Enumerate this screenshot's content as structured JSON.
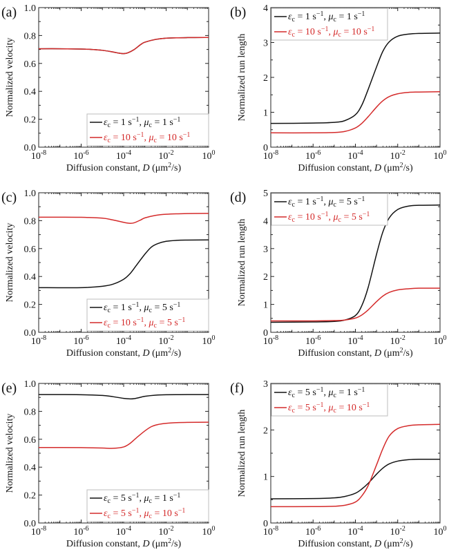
{
  "figure": {
    "colors": {
      "black": "#111111",
      "red": "#d42a2a",
      "frame": "#222222",
      "legend_border": "#bdbdbd"
    }
  },
  "chart_data": [
    {
      "id": "a",
      "panel_label": "(a)",
      "type": "line",
      "xlabel": "Diffusion constant, D (μm²/s)",
      "xlabel_parts": {
        "pre": "Diffusion constant, ",
        "var": "D",
        "unit_pre": " (μm",
        "sup": "2",
        "unit_post": "/s)"
      },
      "ylabel": "Normalized velocity",
      "xscale": "log",
      "xlim_log10": [
        -8,
        0
      ],
      "ylim": [
        0,
        1.0
      ],
      "xticks_exp": [
        "-8",
        "-6",
        "-4",
        "-2",
        "0"
      ],
      "yticks": [
        "0.0",
        "0.2",
        "0.4",
        "0.6",
        "0.8",
        "1.0"
      ],
      "ytick_values": [
        0,
        0.2,
        0.4,
        0.6,
        0.8,
        1.0
      ],
      "legend_position": "bottom-right",
      "series": [
        {
          "name": "ε_c = 1 s^-1, μ_c = 1 s^-1",
          "eps": "1",
          "mu": "1",
          "color": "black",
          "x_log10": [
            -8,
            -7,
            -6,
            -5.5,
            -5,
            -4.5,
            -4.2,
            -4,
            -3.8,
            -3.5,
            -3.2,
            -3,
            -2.5,
            -2,
            -1,
            0
          ],
          "y": [
            0.705,
            0.705,
            0.703,
            0.7,
            0.694,
            0.682,
            0.673,
            0.67,
            0.676,
            0.7,
            0.735,
            0.752,
            0.772,
            0.781,
            0.785,
            0.786
          ]
        },
        {
          "name": "ε_c = 10 s^-1, μ_c = 10 s^-1",
          "eps": "10",
          "mu": "10",
          "color": "red",
          "x_log10": [
            -8,
            -7,
            -6,
            -5.5,
            -5,
            -4.5,
            -4.2,
            -4,
            -3.8,
            -3.5,
            -3.2,
            -3,
            -2.5,
            -2,
            -1,
            0
          ],
          "y": [
            0.705,
            0.705,
            0.703,
            0.7,
            0.694,
            0.682,
            0.673,
            0.67,
            0.676,
            0.7,
            0.735,
            0.752,
            0.772,
            0.781,
            0.785,
            0.786
          ]
        }
      ]
    },
    {
      "id": "b",
      "panel_label": "(b)",
      "type": "line",
      "xlabel": "Diffusion constant, D (μm²/s)",
      "xlabel_parts": {
        "pre": "Diffusion constant, ",
        "var": "D",
        "unit_pre": " (μm",
        "sup": "2",
        "unit_post": "/s)"
      },
      "ylabel": "Normalized run length",
      "xscale": "log",
      "xlim_log10": [
        -8,
        0
      ],
      "ylim": [
        0,
        4
      ],
      "xticks_exp": [
        "-8",
        "-6",
        "-4",
        "-2",
        "0"
      ],
      "yticks": [
        "0",
        "1",
        "2",
        "3",
        "4"
      ],
      "ytick_values": [
        0,
        1,
        2,
        3,
        4
      ],
      "legend_position": "top-left",
      "series": [
        {
          "name": "ε_c = 1 s^-1, μ_c = 1 s^-1",
          "eps": "1",
          "mu": "1",
          "color": "black",
          "x_log10": [
            -8,
            -6,
            -5,
            -4.5,
            -4,
            -3.7,
            -3.4,
            -3,
            -2.7,
            -2.4,
            -2,
            -1.5,
            -1,
            0
          ],
          "y": [
            0.68,
            0.69,
            0.71,
            0.76,
            0.93,
            1.2,
            1.65,
            2.3,
            2.75,
            3.02,
            3.18,
            3.24,
            3.26,
            3.27
          ]
        },
        {
          "name": "ε_c = 10 s^-1, μ_c = 10 s^-1",
          "eps": "10",
          "mu": "10",
          "color": "red",
          "x_log10": [
            -8,
            -6,
            -5,
            -4.5,
            -4,
            -3.7,
            -3.4,
            -3,
            -2.7,
            -2.4,
            -2,
            -1.5,
            -1,
            0
          ],
          "y": [
            0.41,
            0.41,
            0.42,
            0.45,
            0.55,
            0.68,
            0.87,
            1.15,
            1.33,
            1.45,
            1.53,
            1.57,
            1.58,
            1.59
          ]
        }
      ]
    },
    {
      "id": "c",
      "panel_label": "(c)",
      "type": "line",
      "xlabel": "Diffusion constant, D (μm²/s)",
      "xlabel_parts": {
        "pre": "Diffusion constant, ",
        "var": "D",
        "unit_pre": " (μm",
        "sup": "2",
        "unit_post": "/s)"
      },
      "ylabel": "Normalized velocity",
      "xscale": "log",
      "xlim_log10": [
        -8,
        0
      ],
      "ylim": [
        0,
        1.0
      ],
      "xticks_exp": [
        "-8",
        "-6",
        "-4",
        "-2",
        "0"
      ],
      "yticks": [
        "0.0",
        "0.2",
        "0.4",
        "0.6",
        "0.8",
        "1.0"
      ],
      "ytick_values": [
        0,
        0.2,
        0.4,
        0.6,
        0.8,
        1.0
      ],
      "legend_position": "bottom-right",
      "series": [
        {
          "name": "ε_c = 1 s^-1, μ_c = 5 s^-1",
          "eps": "1",
          "mu": "5",
          "color": "black",
          "x_log10": [
            -8,
            -6,
            -5,
            -4.5,
            -4,
            -3.7,
            -3.4,
            -3,
            -2.7,
            -2.4,
            -2,
            -1.5,
            -1,
            0
          ],
          "y": [
            0.32,
            0.32,
            0.33,
            0.345,
            0.38,
            0.42,
            0.48,
            0.56,
            0.61,
            0.635,
            0.652,
            0.659,
            0.661,
            0.662
          ]
        },
        {
          "name": "ε_c = 10 s^-1, μ_c = 5 s^-1",
          "eps": "10",
          "mu": "5",
          "color": "red",
          "x_log10": [
            -8,
            -7,
            -6,
            -5,
            -4.5,
            -4,
            -3.7,
            -3.5,
            -3.2,
            -3,
            -2.5,
            -2,
            -1,
            0
          ],
          "y": [
            0.825,
            0.825,
            0.824,
            0.818,
            0.805,
            0.788,
            0.781,
            0.785,
            0.805,
            0.82,
            0.838,
            0.846,
            0.851,
            0.852
          ]
        }
      ]
    },
    {
      "id": "d",
      "panel_label": "(d)",
      "type": "line",
      "xlabel": "Diffusion constant, D (μm²/s)",
      "xlabel_parts": {
        "pre": "Diffusion constant, ",
        "var": "D",
        "unit_pre": " (μm",
        "sup": "2",
        "unit_post": "/s)"
      },
      "ylabel": "Normalized run length",
      "xscale": "log",
      "xlim_log10": [
        -8,
        0
      ],
      "ylim": [
        0,
        5
      ],
      "xticks_exp": [
        "-8",
        "-6",
        "-4",
        "-2",
        "0"
      ],
      "yticks": [
        "0",
        "1",
        "2",
        "3",
        "4",
        "5"
      ],
      "ytick_values": [
        0,
        1,
        2,
        3,
        4,
        5
      ],
      "legend_position": "top-left",
      "series": [
        {
          "name": "ε_c = 1 s^-1, μ_c = 5 s^-1",
          "eps": "1",
          "mu": "5",
          "color": "black",
          "x_log10": [
            -8,
            -6,
            -5,
            -4.5,
            -4,
            -3.7,
            -3.4,
            -3,
            -2.7,
            -2.4,
            -2,
            -1.5,
            -1,
            0
          ],
          "y": [
            0.36,
            0.37,
            0.39,
            0.44,
            0.6,
            0.95,
            1.6,
            2.8,
            3.6,
            4.1,
            4.4,
            4.52,
            4.55,
            4.56
          ]
        },
        {
          "name": "ε_c = 10 s^-1, μ_c = 5 s^-1",
          "eps": "10",
          "mu": "5",
          "color": "red",
          "x_log10": [
            -8,
            -6,
            -5,
            -4.5,
            -4,
            -3.7,
            -3.4,
            -3,
            -2.7,
            -2.4,
            -2,
            -1.5,
            -1,
            0
          ],
          "y": [
            0.41,
            0.41,
            0.42,
            0.44,
            0.51,
            0.62,
            0.8,
            1.1,
            1.3,
            1.43,
            1.52,
            1.56,
            1.58,
            1.58
          ]
        }
      ]
    },
    {
      "id": "e",
      "panel_label": "(e)",
      "type": "line",
      "xlabel": "Diffusion constant, D (μm²/s)",
      "xlabel_parts": {
        "pre": "Diffusion constant, ",
        "var": "D",
        "unit_pre": " (μm",
        "sup": "2",
        "unit_post": "/s)"
      },
      "ylabel": "Normalized velocity",
      "xscale": "log",
      "xlim_log10": [
        -8,
        0
      ],
      "ylim": [
        0,
        1.0
      ],
      "xticks_exp": [
        "-8",
        "-6",
        "-4",
        "-2",
        "0"
      ],
      "yticks": [
        "0.0",
        "0.2",
        "0.4",
        "0.6",
        "0.8",
        "1.0"
      ],
      "ytick_values": [
        0,
        0.2,
        0.4,
        0.6,
        0.8,
        1.0
      ],
      "legend_position": "bottom-right",
      "series": [
        {
          "name": "ε_c = 5 s^-1, μ_c = 1 s^-1",
          "eps": "5",
          "mu": "1",
          "color": "black",
          "x_log10": [
            -8,
            -7,
            -6,
            -5,
            -4.5,
            -4,
            -3.7,
            -3.5,
            -3.2,
            -3,
            -2.5,
            -2,
            -1,
            0
          ],
          "y": [
            0.92,
            0.92,
            0.919,
            0.914,
            0.905,
            0.893,
            0.889,
            0.891,
            0.901,
            0.908,
            0.916,
            0.919,
            0.92,
            0.92
          ]
        },
        {
          "name": "ε_c = 5 s^-1, μ_c = 10 s^-1",
          "eps": "5",
          "mu": "10",
          "color": "red",
          "x_log10": [
            -8,
            -7,
            -6,
            -5,
            -4.5,
            -4,
            -3.7,
            -3.4,
            -3,
            -2.7,
            -2.4,
            -2,
            -1.5,
            -1,
            0
          ],
          "y": [
            0.541,
            0.541,
            0.54,
            0.537,
            0.535,
            0.545,
            0.57,
            0.61,
            0.66,
            0.69,
            0.705,
            0.714,
            0.719,
            0.721,
            0.722
          ]
        }
      ]
    },
    {
      "id": "f",
      "panel_label": "(f)",
      "type": "line",
      "xlabel": "Diffusion constant, D (μm²/s)",
      "xlabel_parts": {
        "pre": "Diffusion constant, ",
        "var": "D",
        "unit_pre": " (μm",
        "sup": "2",
        "unit_post": "/s)"
      },
      "ylabel": "Normalized run length",
      "xscale": "log",
      "xlim_log10": [
        -8,
        0
      ],
      "ylim": [
        0,
        3
      ],
      "xticks_exp": [
        "-8",
        "-6",
        "-4",
        "-2",
        "0"
      ],
      "yticks": [
        "0",
        "1",
        "2",
        "3"
      ],
      "ytick_values": [
        0,
        1,
        2,
        3
      ],
      "legend_position": "top-left",
      "series": [
        {
          "name": "ε_c = 5 s^-1, μ_c = 1 s^-1",
          "eps": "5",
          "mu": "1",
          "color": "black",
          "x_log10": [
            -8,
            -6,
            -5,
            -4.5,
            -4,
            -3.7,
            -3.4,
            -3,
            -2.7,
            -2.4,
            -2,
            -1.5,
            -1,
            0
          ],
          "y": [
            0.52,
            0.525,
            0.54,
            0.57,
            0.64,
            0.73,
            0.85,
            1.05,
            1.18,
            1.27,
            1.33,
            1.36,
            1.37,
            1.37
          ]
        },
        {
          "name": "ε_c = 5 s^-1, μ_c = 10 s^-1",
          "eps": "5",
          "mu": "10",
          "color": "red",
          "x_log10": [
            -8,
            -6,
            -5,
            -4.5,
            -4,
            -3.7,
            -3.4,
            -3,
            -2.7,
            -2.4,
            -2,
            -1.5,
            -1,
            0
          ],
          "y": [
            0.35,
            0.352,
            0.36,
            0.38,
            0.45,
            0.58,
            0.8,
            1.25,
            1.6,
            1.87,
            2.03,
            2.09,
            2.11,
            2.12
          ]
        }
      ]
    }
  ]
}
